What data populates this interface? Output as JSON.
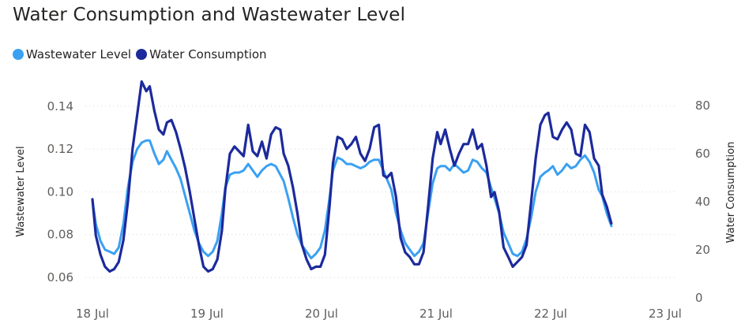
{
  "title": "Water Consumption and Wastewater Level",
  "legend": [
    {
      "name": "Wastewater Level",
      "color": "#3AA0F2"
    },
    {
      "name": "Water Consumption",
      "color": "#1C2A9C"
    }
  ],
  "chart_data": {
    "type": "line",
    "title": "Water Consumption and Wastewater Level",
    "xlabel": "",
    "x_ticks": [
      "18 Jul",
      "19 Jul",
      "20 Jul",
      "21 Jul",
      "22 Jul",
      "23 Jul"
    ],
    "x_range": [
      0,
      5
    ],
    "y_left": {
      "label": "Wastewater Level",
      "range": [
        0.055,
        0.15
      ],
      "ticks": [
        "0.06",
        "0.08",
        "0.10",
        "0.12",
        "0.14"
      ],
      "tick_values": [
        0.06,
        0.08,
        0.1,
        0.12,
        0.14
      ]
    },
    "y_right": {
      "label": "Water Consumption",
      "range": [
        0,
        90
      ],
      "ticks": [
        "0",
        "20",
        "40",
        "60",
        "80"
      ],
      "tick_values": [
        0,
        20,
        40,
        60,
        80
      ]
    },
    "grid": true,
    "legend_position": "top-left",
    "series": [
      {
        "name": "Wastewater Level",
        "axis": "left",
        "color": "#3AA0F2",
        "points": [
          [
            0.0,
            0.096
          ],
          [
            0.03,
            0.085
          ],
          [
            0.07,
            0.077
          ],
          [
            0.11,
            0.073
          ],
          [
            0.15,
            0.072
          ],
          [
            0.19,
            0.071
          ],
          [
            0.23,
            0.074
          ],
          [
            0.27,
            0.085
          ],
          [
            0.31,
            0.102
          ],
          [
            0.35,
            0.114
          ],
          [
            0.39,
            0.12
          ],
          [
            0.43,
            0.123
          ],
          [
            0.47,
            0.124
          ],
          [
            0.5,
            0.124
          ],
          [
            0.54,
            0.118
          ],
          [
            0.58,
            0.113
          ],
          [
            0.62,
            0.115
          ],
          [
            0.65,
            0.119
          ],
          [
            0.69,
            0.115
          ],
          [
            0.73,
            0.111
          ],
          [
            0.77,
            0.106
          ],
          [
            0.81,
            0.098
          ],
          [
            0.85,
            0.09
          ],
          [
            0.89,
            0.082
          ],
          [
            0.93,
            0.076
          ],
          [
            0.97,
            0.072
          ],
          [
            1.01,
            0.07
          ],
          [
            1.05,
            0.072
          ],
          [
            1.09,
            0.077
          ],
          [
            1.13,
            0.09
          ],
          [
            1.16,
            0.102
          ],
          [
            1.2,
            0.108
          ],
          [
            1.24,
            0.109
          ],
          [
            1.28,
            0.109
          ],
          [
            1.32,
            0.11
          ],
          [
            1.36,
            0.113
          ],
          [
            1.4,
            0.11
          ],
          [
            1.44,
            0.107
          ],
          [
            1.48,
            0.11
          ],
          [
            1.52,
            0.112
          ],
          [
            1.56,
            0.113
          ],
          [
            1.6,
            0.112
          ],
          [
            1.64,
            0.108
          ],
          [
            1.67,
            0.105
          ],
          [
            1.71,
            0.097
          ],
          [
            1.75,
            0.088
          ],
          [
            1.79,
            0.08
          ],
          [
            1.83,
            0.075
          ],
          [
            1.87,
            0.072
          ],
          [
            1.91,
            0.069
          ],
          [
            1.95,
            0.071
          ],
          [
            1.99,
            0.074
          ],
          [
            2.03,
            0.082
          ],
          [
            2.07,
            0.097
          ],
          [
            2.1,
            0.11
          ],
          [
            2.14,
            0.116
          ],
          [
            2.18,
            0.115
          ],
          [
            2.22,
            0.113
          ],
          [
            2.26,
            0.113
          ],
          [
            2.3,
            0.112
          ],
          [
            2.34,
            0.111
          ],
          [
            2.38,
            0.112
          ],
          [
            2.42,
            0.114
          ],
          [
            2.46,
            0.115
          ],
          [
            2.5,
            0.115
          ],
          [
            2.54,
            0.11
          ],
          [
            2.57,
            0.106
          ],
          [
            2.61,
            0.101
          ],
          [
            2.65,
            0.09
          ],
          [
            2.69,
            0.082
          ],
          [
            2.73,
            0.076
          ],
          [
            2.77,
            0.073
          ],
          [
            2.81,
            0.07
          ],
          [
            2.85,
            0.072
          ],
          [
            2.89,
            0.076
          ],
          [
            2.93,
            0.09
          ],
          [
            2.97,
            0.104
          ],
          [
            3.01,
            0.111
          ],
          [
            3.04,
            0.112
          ],
          [
            3.08,
            0.112
          ],
          [
            3.12,
            0.11
          ],
          [
            3.16,
            0.113
          ],
          [
            3.2,
            0.111
          ],
          [
            3.24,
            0.109
          ],
          [
            3.28,
            0.11
          ],
          [
            3.32,
            0.115
          ],
          [
            3.36,
            0.114
          ],
          [
            3.4,
            0.111
          ],
          [
            3.44,
            0.109
          ],
          [
            3.48,
            0.102
          ],
          [
            3.51,
            0.097
          ],
          [
            3.55,
            0.09
          ],
          [
            3.59,
            0.081
          ],
          [
            3.63,
            0.076
          ],
          [
            3.67,
            0.071
          ],
          [
            3.71,
            0.07
          ],
          [
            3.75,
            0.072
          ],
          [
            3.79,
            0.078
          ],
          [
            3.83,
            0.088
          ],
          [
            3.87,
            0.1
          ],
          [
            3.91,
            0.107
          ],
          [
            3.95,
            0.109
          ],
          [
            3.98,
            0.11
          ],
          [
            4.02,
            0.112
          ],
          [
            4.06,
            0.108
          ],
          [
            4.1,
            0.11
          ],
          [
            4.14,
            0.113
          ],
          [
            4.18,
            0.111
          ],
          [
            4.22,
            0.112
          ],
          [
            4.26,
            0.115
          ],
          [
            4.3,
            0.117
          ],
          [
            4.34,
            0.114
          ],
          [
            4.38,
            0.109
          ],
          [
            4.42,
            0.101
          ],
          [
            4.45,
            0.098
          ],
          [
            4.49,
            0.09
          ],
          [
            4.53,
            0.084
          ]
        ]
      },
      {
        "name": "Water Consumption",
        "axis": "right",
        "color": "#1C2A9C",
        "points": [
          [
            0.0,
            41
          ],
          [
            0.03,
            26
          ],
          [
            0.07,
            18
          ],
          [
            0.11,
            13
          ],
          [
            0.15,
            11
          ],
          [
            0.19,
            12
          ],
          [
            0.23,
            15
          ],
          [
            0.27,
            24
          ],
          [
            0.31,
            40
          ],
          [
            0.35,
            62
          ],
          [
            0.39,
            76
          ],
          [
            0.43,
            90
          ],
          [
            0.47,
            86
          ],
          [
            0.5,
            88
          ],
          [
            0.54,
            78
          ],
          [
            0.58,
            70
          ],
          [
            0.62,
            68
          ],
          [
            0.65,
            73
          ],
          [
            0.69,
            74
          ],
          [
            0.73,
            69
          ],
          [
            0.77,
            62
          ],
          [
            0.81,
            54
          ],
          [
            0.85,
            44
          ],
          [
            0.89,
            33
          ],
          [
            0.93,
            22
          ],
          [
            0.97,
            13
          ],
          [
            1.01,
            11
          ],
          [
            1.05,
            12
          ],
          [
            1.09,
            16
          ],
          [
            1.13,
            28
          ],
          [
            1.16,
            45
          ],
          [
            1.2,
            60
          ],
          [
            1.24,
            63
          ],
          [
            1.28,
            61
          ],
          [
            1.32,
            59
          ],
          [
            1.36,
            72
          ],
          [
            1.4,
            61
          ],
          [
            1.44,
            59
          ],
          [
            1.48,
            65
          ],
          [
            1.52,
            58
          ],
          [
            1.56,
            68
          ],
          [
            1.6,
            71
          ],
          [
            1.64,
            70
          ],
          [
            1.67,
            60
          ],
          [
            1.71,
            55
          ],
          [
            1.75,
            46
          ],
          [
            1.79,
            35
          ],
          [
            1.83,
            22
          ],
          [
            1.87,
            16
          ],
          [
            1.91,
            12
          ],
          [
            1.95,
            13
          ],
          [
            1.99,
            13
          ],
          [
            2.03,
            18
          ],
          [
            2.07,
            38
          ],
          [
            2.1,
            56
          ],
          [
            2.14,
            67
          ],
          [
            2.18,
            66
          ],
          [
            2.22,
            62
          ],
          [
            2.26,
            64
          ],
          [
            2.3,
            67
          ],
          [
            2.34,
            60
          ],
          [
            2.38,
            57
          ],
          [
            2.42,
            62
          ],
          [
            2.46,
            71
          ],
          [
            2.5,
            72
          ],
          [
            2.54,
            51
          ],
          [
            2.57,
            50
          ],
          [
            2.61,
            52
          ],
          [
            2.65,
            42
          ],
          [
            2.69,
            25
          ],
          [
            2.73,
            19
          ],
          [
            2.77,
            17
          ],
          [
            2.81,
            14
          ],
          [
            2.85,
            14
          ],
          [
            2.89,
            19
          ],
          [
            2.93,
            38
          ],
          [
            2.97,
            58
          ],
          [
            3.01,
            69
          ],
          [
            3.04,
            64
          ],
          [
            3.08,
            70
          ],
          [
            3.12,
            62
          ],
          [
            3.16,
            55
          ],
          [
            3.2,
            60
          ],
          [
            3.24,
            64
          ],
          [
            3.28,
            64
          ],
          [
            3.32,
            70
          ],
          [
            3.36,
            62
          ],
          [
            3.4,
            64
          ],
          [
            3.44,
            55
          ],
          [
            3.48,
            42
          ],
          [
            3.51,
            44
          ],
          [
            3.55,
            36
          ],
          [
            3.59,
            21
          ],
          [
            3.63,
            17
          ],
          [
            3.67,
            13
          ],
          [
            3.71,
            15
          ],
          [
            3.75,
            17
          ],
          [
            3.79,
            22
          ],
          [
            3.83,
            40
          ],
          [
            3.87,
            58
          ],
          [
            3.91,
            72
          ],
          [
            3.95,
            76
          ],
          [
            3.98,
            77
          ],
          [
            4.02,
            67
          ],
          [
            4.06,
            66
          ],
          [
            4.1,
            70
          ],
          [
            4.14,
            73
          ],
          [
            4.18,
            70
          ],
          [
            4.22,
            60
          ],
          [
            4.26,
            59
          ],
          [
            4.3,
            72
          ],
          [
            4.34,
            69
          ],
          [
            4.38,
            58
          ],
          [
            4.42,
            55
          ],
          [
            4.45,
            43
          ],
          [
            4.49,
            38
          ],
          [
            4.53,
            31
          ]
        ]
      }
    ]
  }
}
